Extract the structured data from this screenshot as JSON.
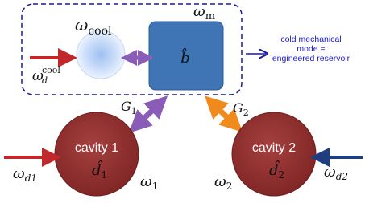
{
  "reservoir": {
    "cooling_freq": {
      "symbol": "ω",
      "sub": "cool"
    },
    "mode_freq": {
      "symbol": "ω",
      "sub": "m"
    },
    "mode_operator": "b̂",
    "drive": {
      "symbol": "ω",
      "sub": "d",
      "sup": "cool"
    },
    "note": [
      "cold mechanical",
      "mode =",
      "engineered reservoir"
    ]
  },
  "couplings": [
    {
      "symbol": "G",
      "sub": "1"
    },
    {
      "symbol": "G",
      "sub": "2"
    }
  ],
  "cavities": [
    {
      "label": "cavity 1",
      "operator": {
        "symbol": "d̂",
        "sub": "1"
      },
      "freq": {
        "symbol": "ω",
        "sub": "1"
      },
      "drive": {
        "symbol": "ω",
        "sub": "d1"
      }
    },
    {
      "label": "cavity 2",
      "operator": {
        "symbol": "d̂",
        "sub": "2"
      },
      "freq": {
        "symbol": "ω",
        "sub": "2"
      },
      "drive": {
        "symbol": "ω",
        "sub": "d2"
      }
    }
  ]
}
